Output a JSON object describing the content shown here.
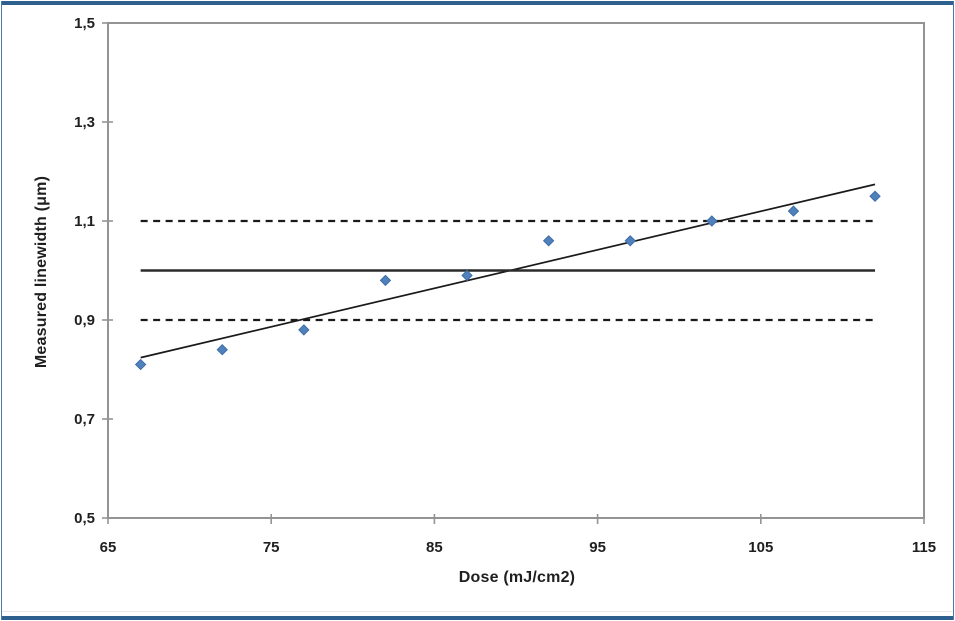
{
  "page": {
    "outer_border_color": "#4a7aa8",
    "top_bar_color": "#2d5f8f",
    "bottom_bar_color": "#2d5f8f",
    "divider_color": "#e9e9e9"
  },
  "chart_data": {
    "type": "scatter",
    "title": "",
    "xlabel": "Dose (mJ/cm2)",
    "ylabel": "Measured linewidth (μm)",
    "xlim": [
      65,
      115
    ],
    "ylim": [
      0.5,
      1.5
    ],
    "x_ticks": [
      65,
      75,
      85,
      95,
      105,
      115
    ],
    "y_ticks": [
      1.5,
      1.3,
      1.1,
      0.9,
      0.7,
      0.5
    ],
    "x_tick_labels": [
      "65",
      "75",
      "85",
      "95",
      "105",
      "115"
    ],
    "y_tick_labels": [
      "1,5",
      "1,3",
      "1,1",
      "0,9",
      "0,7",
      "0,5"
    ],
    "decimal_separator": ",",
    "grid": false,
    "legend": false,
    "axis_color": "#949494",
    "tick_label_color": "#1f1f1f",
    "plot_border": true,
    "series": [
      {
        "name": "measured-linewidth-points",
        "kind": "scatter",
        "marker": "diamond",
        "marker_color": "#4f81bd",
        "marker_edge_color": "#3e6da5",
        "marker_size": 10,
        "x": [
          67,
          72,
          77,
          82,
          87,
          92,
          97,
          102,
          107,
          112
        ],
        "y": [
          0.81,
          0.84,
          0.88,
          0.98,
          0.99,
          1.06,
          1.06,
          1.1,
          1.12,
          1.15
        ]
      },
      {
        "name": "linear-trendline",
        "kind": "line",
        "style": "solid",
        "color": "#1a1a1a",
        "width": 1.7,
        "x": [
          67,
          112
        ],
        "y": [
          0.824,
          1.174
        ]
      },
      {
        "name": "target-line",
        "kind": "line",
        "style": "solid",
        "color": "#2b2b2b",
        "width": 2.4,
        "x": [
          67,
          112
        ],
        "y": [
          1.0,
          1.0
        ]
      },
      {
        "name": "upper-limit-line",
        "kind": "line",
        "style": "dashed",
        "color": "#1a1a1a",
        "width": 2.2,
        "x": [
          67,
          112
        ],
        "y": [
          1.1,
          1.1
        ]
      },
      {
        "name": "lower-limit-line",
        "kind": "line",
        "style": "dashed",
        "color": "#1a1a1a",
        "width": 2.2,
        "x": [
          67,
          112
        ],
        "y": [
          0.9,
          0.9
        ]
      }
    ]
  }
}
